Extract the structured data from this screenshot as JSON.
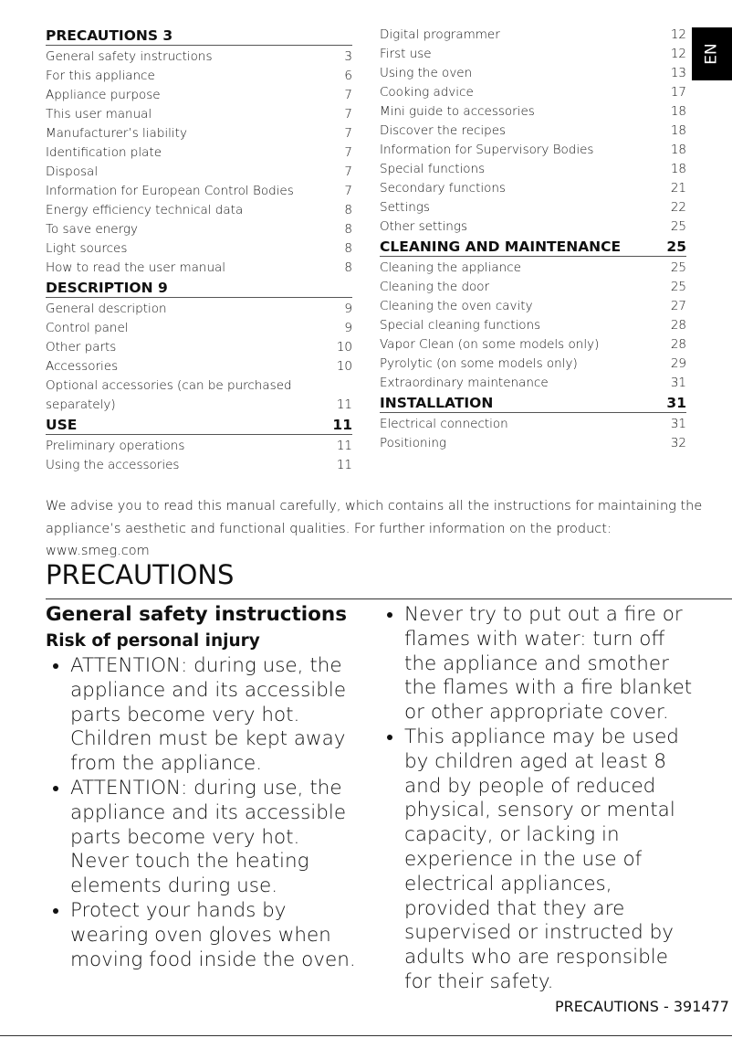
{
  "tab": "EN",
  "toc": {
    "left": [
      {
        "heading": "PRECAUTIONS 3",
        "entries": [
          {
            "label": "General safety instructions",
            "page": "3"
          },
          {
            "label": "For this appliance",
            "page": "6"
          },
          {
            "label": "Appliance purpose",
            "page": "7"
          },
          {
            "label": "This user manual",
            "page": "7"
          },
          {
            "label": "Manufacturer’s liability",
            "page": "7"
          },
          {
            "label": "Identification plate",
            "page": "7"
          },
          {
            "label": "Disposal",
            "page": "7"
          },
          {
            "label": "Information for European Control Bodies",
            "page": "7"
          },
          {
            "label": "Energy efficiency technical data",
            "page": "8"
          },
          {
            "label": "To save energy",
            "page": "8"
          },
          {
            "label": "Light sources",
            "page": "8"
          },
          {
            "label": "How to read the user manual",
            "page": "8"
          }
        ]
      },
      {
        "heading": "DESCRIPTION 9",
        "entries": [
          {
            "label": "General description",
            "page": "9"
          },
          {
            "label": "Control panel",
            "page": "9"
          },
          {
            "label": "Other parts",
            "page": "10"
          },
          {
            "label": "Accessories",
            "page": "10"
          },
          {
            "label": "Optional accessories (can be purchased separately)",
            "page": "11"
          }
        ]
      },
      {
        "heading": "USE",
        "page": "11",
        "entries": [
          {
            "label": "Preliminary operations",
            "page": "11"
          },
          {
            "label": "Using the accessories",
            "page": "11"
          }
        ]
      }
    ],
    "right": [
      {
        "entries": [
          {
            "label": "Digital programmer",
            "page": "12"
          },
          {
            "label": "First use",
            "page": "12"
          },
          {
            "label": "Using the oven",
            "page": "13"
          },
          {
            "label": "Cooking advice",
            "page": "17"
          },
          {
            "label": "Mini guide to accessories",
            "page": "18"
          },
          {
            "label": "Discover the recipes",
            "page": "18"
          },
          {
            "label": "Information for Supervisory Bodies",
            "page": "18"
          },
          {
            "label": "Special functions",
            "page": "18"
          },
          {
            "label": "Secondary functions",
            "page": "21"
          },
          {
            "label": "Settings",
            "page": "22"
          },
          {
            "label": "Other settings",
            "page": "25"
          }
        ]
      },
      {
        "heading": "CLEANING AND MAINTENANCE",
        "page": "25",
        "entries": [
          {
            "label": "Cleaning the appliance",
            "page": "25"
          },
          {
            "label": "Cleaning the door",
            "page": "25"
          },
          {
            "label": "Cleaning the oven cavity",
            "page": "27"
          },
          {
            "label": "Special cleaning functions",
            "page": "28"
          },
          {
            "label": "Vapor Clean (on some models only)",
            "page": "28"
          },
          {
            "label": "Pyrolytic (on some models only)",
            "page": "29"
          },
          {
            "label": "Extraordinary maintenance",
            "page": "31"
          }
        ]
      },
      {
        "heading": "INSTALLATION",
        "page": "31",
        "entries": [
          {
            "label": "Electrical connection",
            "page": "31"
          },
          {
            "label": "Positioning",
            "page": "32"
          }
        ]
      }
    ]
  },
  "intro": "We advise you to read this manual carefully, which contains all the instructions for maintaining the appliance’s aesthetic and functional qualities. For further information on the product: www.smeg.com",
  "section": {
    "title": "PRECAUTIONS",
    "subtitle": "General safety instructions",
    "subheading": "Risk of personal injury",
    "left_bullets": [
      "ATTENTION: during use, the appliance and its accessible parts become very hot. Children must be kept away from the appliance.",
      "ATTENTION: during use, the appliance and its accessible parts become very hot. Never touch the heating elements during use.",
      "Protect your hands by wearing oven gloves when moving food inside the oven."
    ],
    "right_bullets": [
      "Never try to put out a fire or flames with water: turn off the appliance and smother the flames with a fire blanket or other appropriate cover.",
      "This appliance may be used by children aged at least 8 and by people of reduced physical, sensory or mental capacity, or lacking in experience in the use of electrical appliances, provided that they are supervised or instructed by adults who are responsible for their safety."
    ]
  },
  "footer": "PRECAUTIONS  -  391477"
}
